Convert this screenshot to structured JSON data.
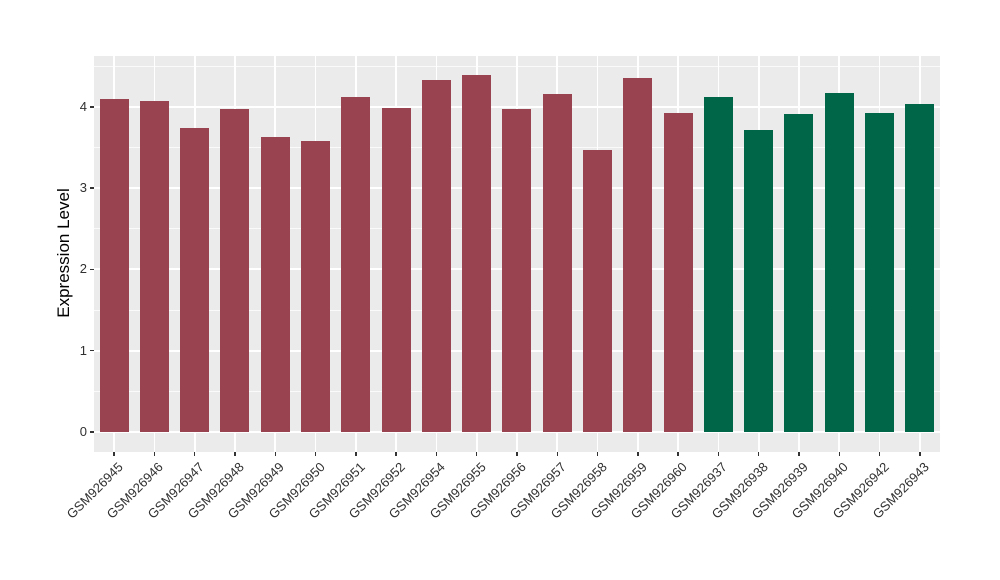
{
  "figure": {
    "background": "#FFFFFF",
    "panel_background": "#EBEBEB",
    "grid_color": "#FFFFFF",
    "axis_text_color": "#303030",
    "tick_mark_color": "#333333"
  },
  "chart_data": {
    "type": "bar",
    "title": "",
    "xlabel": "",
    "ylabel": "Expression Level",
    "ylim": [
      0,
      4.6
    ],
    "y_ticks": [
      0,
      1,
      2,
      3,
      4
    ],
    "y_minor_ticks": [
      0.5,
      1.5,
      2.5,
      3.5,
      4.5
    ],
    "grid": "on",
    "legend_position": "none",
    "x_tick_rotation_degrees": 45,
    "group_colors": [
      "#9A4350",
      "#006648"
    ],
    "bars": [
      {
        "label": "GSM926945",
        "value": 4.09,
        "group": 0
      },
      {
        "label": "GSM926946",
        "value": 4.07,
        "group": 0
      },
      {
        "label": "GSM926947",
        "value": 3.74,
        "group": 0
      },
      {
        "label": "GSM926948",
        "value": 3.97,
        "group": 0
      },
      {
        "label": "GSM926949",
        "value": 3.63,
        "group": 0
      },
      {
        "label": "GSM926950",
        "value": 3.58,
        "group": 0
      },
      {
        "label": "GSM926951",
        "value": 4.12,
        "group": 0
      },
      {
        "label": "GSM926952",
        "value": 3.99,
        "group": 0
      },
      {
        "label": "GSM926954",
        "value": 4.33,
        "group": 0
      },
      {
        "label": "GSM926955",
        "value": 4.39,
        "group": 0
      },
      {
        "label": "GSM926956",
        "value": 3.97,
        "group": 0
      },
      {
        "label": "GSM926957",
        "value": 4.16,
        "group": 0
      },
      {
        "label": "GSM926958",
        "value": 3.47,
        "group": 0
      },
      {
        "label": "GSM926959",
        "value": 4.35,
        "group": 0
      },
      {
        "label": "GSM926960",
        "value": 3.93,
        "group": 0
      },
      {
        "label": "GSM926937",
        "value": 4.12,
        "group": 1
      },
      {
        "label": "GSM926938",
        "value": 3.71,
        "group": 1
      },
      {
        "label": "GSM926939",
        "value": 3.91,
        "group": 1
      },
      {
        "label": "GSM926940",
        "value": 4.17,
        "group": 1
      },
      {
        "label": "GSM926942",
        "value": 3.93,
        "group": 1
      },
      {
        "label": "GSM926943",
        "value": 4.03,
        "group": 1
      }
    ]
  }
}
